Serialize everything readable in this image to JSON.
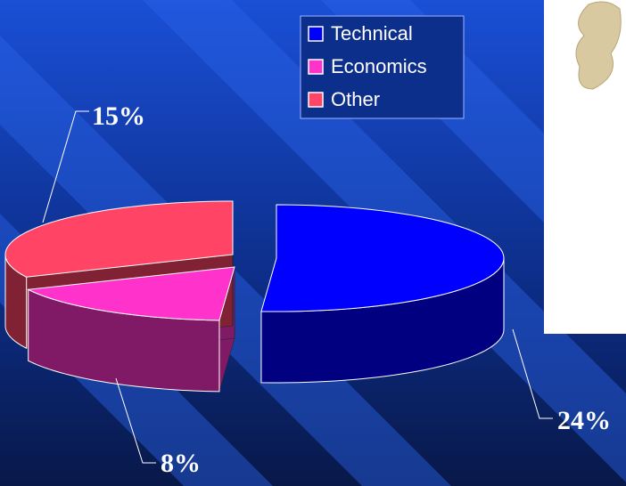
{
  "chart_data": {
    "type": "pie",
    "categories": [
      "Technical",
      "Economics",
      "Other"
    ],
    "values": [
      24,
      8,
      15
    ],
    "value_labels": [
      "24%",
      "8%",
      "15%"
    ],
    "colors": [
      "#0000ff",
      "#ff33cc",
      "#ff4466"
    ]
  }
}
